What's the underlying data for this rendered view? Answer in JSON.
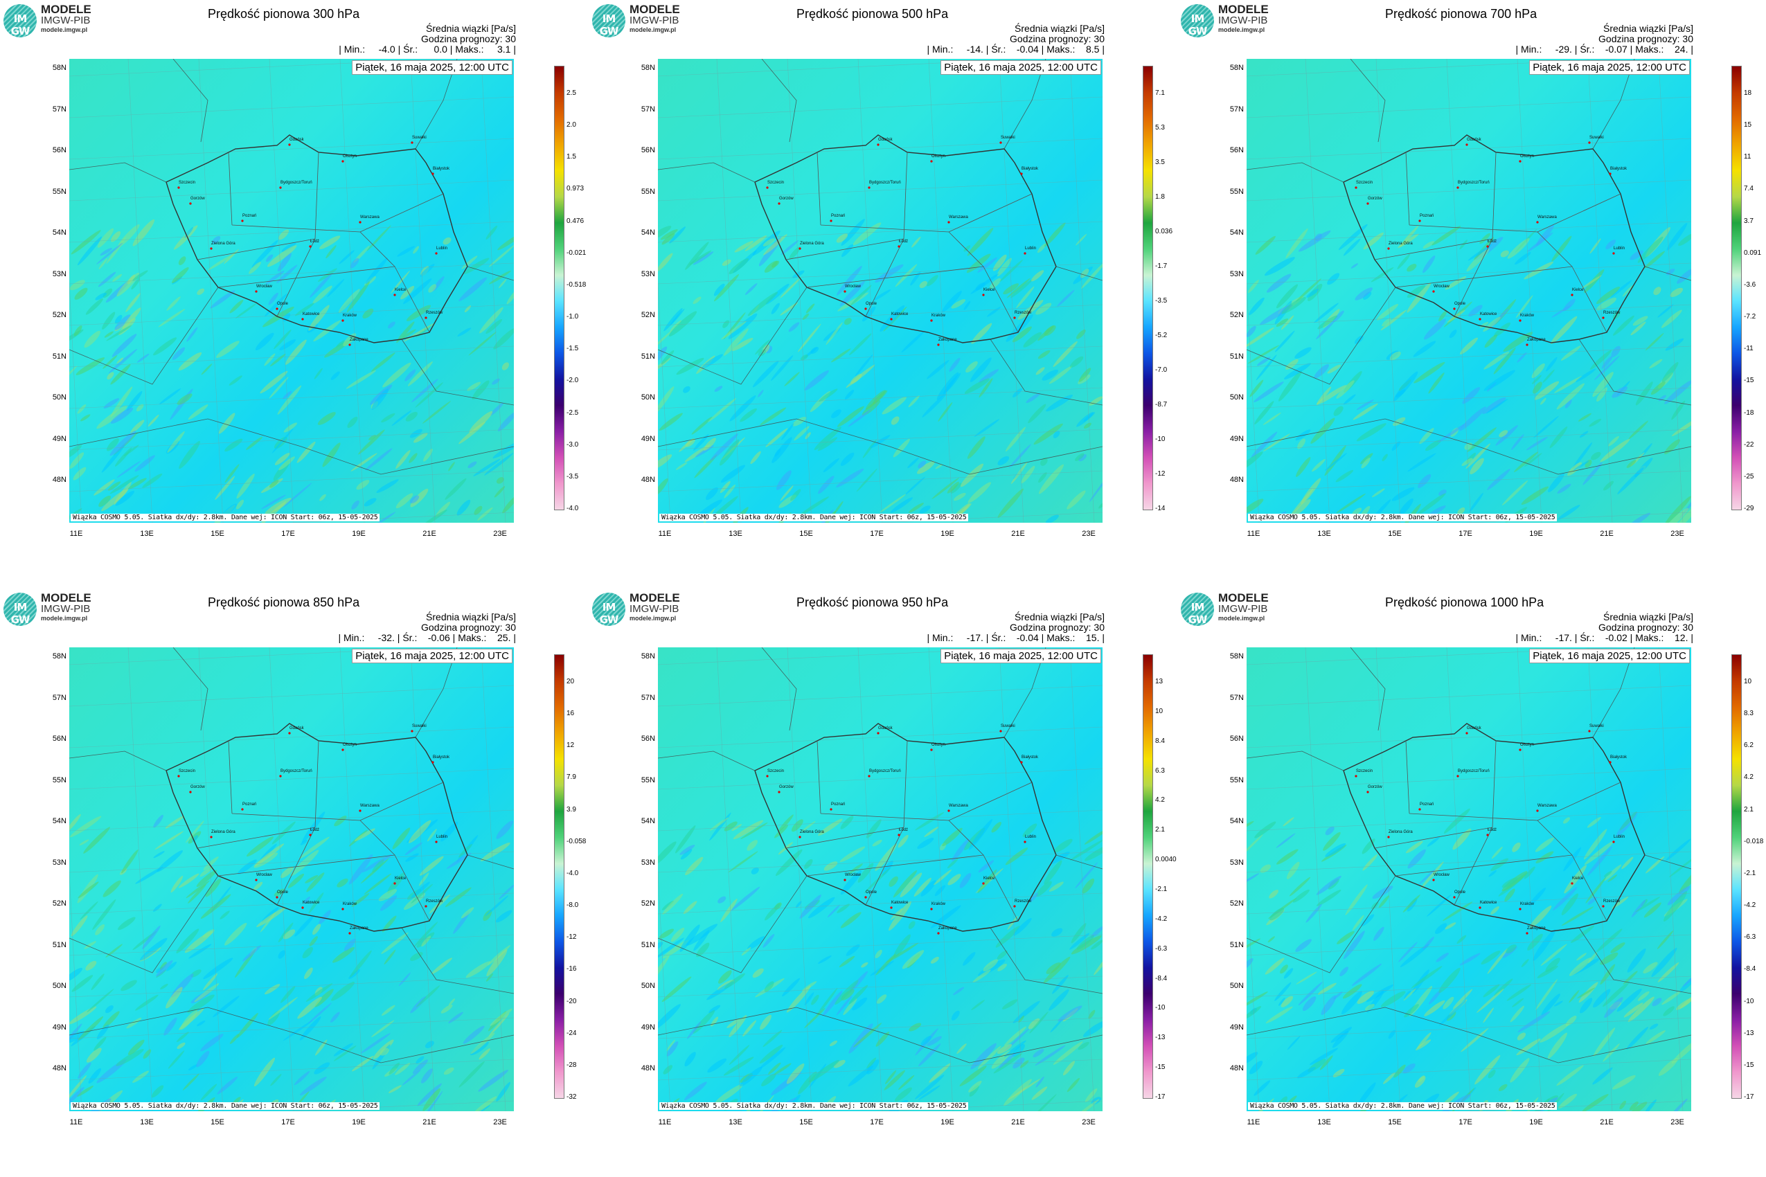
{
  "logo": {
    "top": "MODELE",
    "mid": "IMGW-PIB",
    "url": "modele.imgw.pl",
    "mark": "IM GW"
  },
  "common": {
    "line1": "Średnia wiązki [Pa/s]",
    "line2": "Godzina prognozy: 30",
    "date": "Piątek, 16 maja 2025, 12:00 UTC",
    "footer": "Wiązka COSMO 5.05. Siatka dx/dy: 2.8km. Dane wej: ICON Start: 06z, 15-05-2025",
    "lat_labels": [
      "58N",
      "57N",
      "56N",
      "55N",
      "54N",
      "53N",
      "52N",
      "51N",
      "50N",
      "49N",
      "48N"
    ],
    "lon_labels": [
      "11E",
      "13E",
      "15E",
      "17E",
      "19E",
      "21E",
      "23E"
    ]
  },
  "cities": [
    "Gdańsk",
    "Olsztyn",
    "Suwałki",
    "Białystok",
    "Szczecin",
    "Bydgoszcz/Toruń",
    "Gorzów",
    "Poznań",
    "Warszawa",
    "Zielona Góra",
    "Łódź",
    "Lublin",
    "Wrocław",
    "Kielce",
    "Opole",
    "Katowice",
    "Kraków",
    "Rzeszów",
    "Zakopane"
  ],
  "panels": [
    {
      "title": "Prędkość pionowa 300 hPa",
      "stats": "| Min.:     -4.0 | Śr.:      0.0 | Maks.:     3.1 |",
      "cbar": [
        "2.5",
        "2.0",
        "1.5",
        "0.973",
        "0.476",
        "-0.021",
        "-0.518",
        "-1.0",
        "-1.5",
        "-2.0",
        "-2.5",
        "-3.0",
        "-3.5",
        "-4.0"
      ]
    },
    {
      "title": "Prędkość pionowa 500 hPa",
      "stats": "| Min.:     -14. | Śr.:    -0.04 | Maks.:    8.5 |",
      "cbar": [
        "7.1",
        "5.3",
        "3.5",
        "1.8",
        "0.036",
        "-1.7",
        "-3.5",
        "-5.2",
        "-7.0",
        "-8.7",
        "-10",
        "-12",
        "-14"
      ]
    },
    {
      "title": "Prędkość pionowa 700 hPa",
      "stats": "| Min.:     -29. | Śr.:    -0.07 | Maks.:    24. |",
      "cbar": [
        "18",
        "15",
        "11",
        "7.4",
        "3.7",
        "0.091",
        "-3.6",
        "-7.2",
        "-11",
        "-15",
        "-18",
        "-22",
        "-25",
        "-29"
      ]
    },
    {
      "title": "Prędkość pionowa 850 hPa",
      "stats": "| Min.:     -32. | Śr.:    -0.06 | Maks.:    25. |",
      "cbar": [
        "20",
        "16",
        "12",
        "7.9",
        "3.9",
        "-0.058",
        "-4.0",
        "-8.0",
        "-12",
        "-16",
        "-20",
        "-24",
        "-28",
        "-32"
      ]
    },
    {
      "title": "Prędkość pionowa 950 hPa",
      "stats": "| Min.:     -17. | Śr.:    -0.04 | Maks.:    15. |",
      "cbar": [
        "13",
        "10",
        "8.4",
        "6.3",
        "4.2",
        "2.1",
        "0.0040",
        "-2.1",
        "-4.2",
        "-6.3",
        "-8.4",
        "-10",
        "-13",
        "-15",
        "-17"
      ]
    },
    {
      "title": "Prędkość pionowa 1000 hPa",
      "stats": "| Min.:     -17. | Śr.:    -0.02 | Maks.:    12. |",
      "cbar": [
        "10",
        "8.3",
        "6.2",
        "4.2",
        "2.1",
        "-0.018",
        "-2.1",
        "-4.2",
        "-6.3",
        "-8.4",
        "-10",
        "-13",
        "-15",
        "-17"
      ]
    }
  ],
  "chart_data": [
    {
      "type": "heatmap",
      "title": "Prędkość pionowa 300 hPa",
      "units": "Pa/s",
      "min": -4.0,
      "mean": 0.0,
      "max": 3.1,
      "colorbar_ticks": [
        2.5,
        2.0,
        1.5,
        0.973,
        0.476,
        -0.021,
        -0.518,
        -1.0,
        -1.5,
        -2.0,
        -2.5,
        -3.0,
        -3.5,
        -4.0
      ]
    },
    {
      "type": "heatmap",
      "title": "Prędkość pionowa 500 hPa",
      "units": "Pa/s",
      "min": -14,
      "mean": -0.04,
      "max": 8.5,
      "colorbar_ticks": [
        7.1,
        5.3,
        3.5,
        1.8,
        0.036,
        -1.7,
        -3.5,
        -5.2,
        -7.0,
        -8.7,
        -10,
        -12,
        -14
      ]
    },
    {
      "type": "heatmap",
      "title": "Prędkość pionowa 700 hPa",
      "units": "Pa/s",
      "min": -29,
      "mean": -0.07,
      "max": 24,
      "colorbar_ticks": [
        18,
        15,
        11,
        7.4,
        3.7,
        0.091,
        -3.6,
        -7.2,
        -11,
        -15,
        -18,
        -22,
        -25,
        -29
      ]
    },
    {
      "type": "heatmap",
      "title": "Prędkość pionowa 850 hPa",
      "units": "Pa/s",
      "min": -32,
      "mean": -0.06,
      "max": 25,
      "colorbar_ticks": [
        20,
        16,
        12,
        7.9,
        3.9,
        -0.058,
        -4.0,
        -8.0,
        -12,
        -16,
        -20,
        -24,
        -28,
        -32
      ]
    },
    {
      "type": "heatmap",
      "title": "Prędkość pionowa 950 hPa",
      "units": "Pa/s",
      "min": -17,
      "mean": -0.04,
      "max": 15,
      "colorbar_ticks": [
        13,
        10,
        8.4,
        6.3,
        4.2,
        2.1,
        0.004,
        -2.1,
        -4.2,
        -6.3,
        -8.4,
        -10,
        -13,
        -15,
        -17
      ]
    },
    {
      "type": "heatmap",
      "title": "Prędkość pionowa 1000 hPa",
      "units": "Pa/s",
      "min": -17,
      "mean": -0.02,
      "max": 12,
      "colorbar_ticks": [
        10,
        8.3,
        6.2,
        4.2,
        2.1,
        -0.018,
        -2.1,
        -4.2,
        -6.3,
        -8.4,
        -10,
        -13,
        -15,
        -17
      ]
    }
  ]
}
